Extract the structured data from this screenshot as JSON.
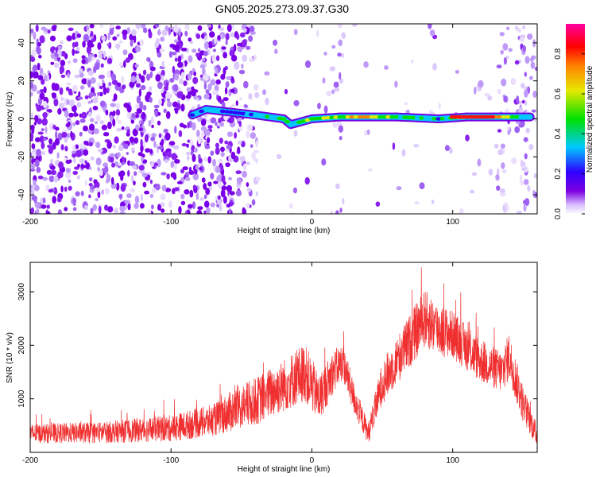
{
  "title": "GN05.2025.273.09.37.G30",
  "chart_data": [
    {
      "type": "heatmap",
      "title": "GN05.2025.273.09.37.G30",
      "xlabel": "Height of straight line (km)",
      "ylabel": "Frequency (Hz)",
      "xlim": [
        -200,
        160
      ],
      "ylim": [
        -50,
        50
      ],
      "xticks": [
        -200,
        -100,
        0,
        100
      ],
      "yticks": [
        -40,
        -20,
        0,
        20,
        40
      ],
      "colorbar": {
        "label": "Normalized spectral amplitude",
        "range": [
          0,
          0.95
        ],
        "ticks": [
          0,
          0.2,
          0.4,
          0.6,
          0.8
        ],
        "tick_labels": [
          "0.0",
          "0.2",
          "0.4",
          "0.6",
          "0.8"
        ]
      },
      "ridge": {
        "description": "Dominant frequency ridge near 0 Hz",
        "points": [
          {
            "x": -85,
            "f": 2,
            "amp": 0.3
          },
          {
            "x": -75,
            "f": 5,
            "amp": 0.35
          },
          {
            "x": -40,
            "f": 2,
            "amp": 0.35
          },
          {
            "x": -20,
            "f": 0,
            "amp": 0.55
          },
          {
            "x": -15,
            "f": -3,
            "amp": 0.5
          },
          {
            "x": 0,
            "f": 0,
            "amp": 0.6
          },
          {
            "x": 20,
            "f": 1,
            "amp": 0.65
          },
          {
            "x": 40,
            "f": 1,
            "amp": 0.8
          },
          {
            "x": 60,
            "f": 1,
            "amp": 0.6
          },
          {
            "x": 90,
            "f": 0,
            "amp": 0.45
          },
          {
            "x": 110,
            "f": 1,
            "amp": 0.9
          },
          {
            "x": 130,
            "f": 1,
            "amp": 0.85
          },
          {
            "x": 155,
            "f": 1,
            "amp": 0.3
          }
        ]
      }
    },
    {
      "type": "line",
      "xlabel": "Height of straight line (km)",
      "ylabel": "SNR (10 * v/v)",
      "xlim": [
        -200,
        160
      ],
      "ylim": [
        0,
        3550
      ],
      "xticks": [
        -200,
        -100,
        0,
        100
      ],
      "yticks": [
        1000,
        2000,
        3000
      ],
      "series": [
        {
          "name": "SNR",
          "color": "#f03030",
          "envelope_x": [
            -200,
            -150,
            -100,
            -70,
            -55,
            -40,
            -20,
            -5,
            5,
            15,
            22,
            30,
            40,
            50,
            60,
            70,
            80,
            90,
            100,
            120,
            135,
            140,
            150,
            160
          ],
          "envelope_mean": [
            350,
            370,
            450,
            600,
            800,
            950,
            1250,
            1500,
            1000,
            1500,
            1700,
            1000,
            350,
            1300,
            1700,
            2100,
            2500,
            2300,
            2200,
            1700,
            1500,
            1800,
            900,
            300
          ],
          "noise_amplitude": [
            180,
            200,
            250,
            300,
            400,
            450,
            500,
            550,
            450,
            400,
            350,
            300,
            200,
            400,
            450,
            500,
            550,
            500,
            450,
            400,
            400,
            450,
            350,
            200
          ]
        }
      ]
    }
  ]
}
